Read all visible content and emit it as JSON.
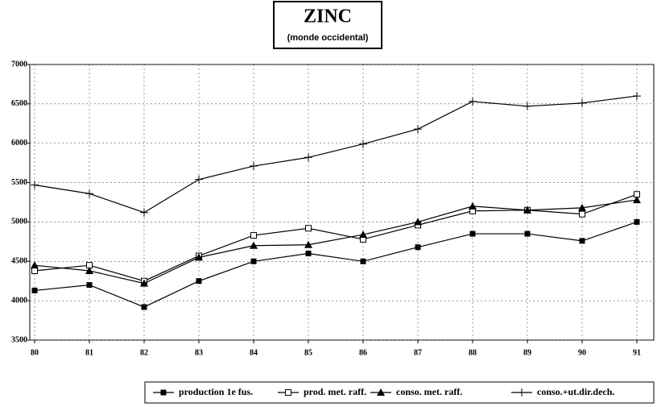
{
  "chart_data": {
    "type": "line",
    "title": "ZINC",
    "subtitle": "(monde occidental)",
    "categories": [
      "80",
      "81",
      "82",
      "83",
      "84",
      "85",
      "86",
      "87",
      "88",
      "89",
      "90",
      "91"
    ],
    "series": [
      {
        "name": "production 1e fus.",
        "color": "#000000",
        "marker": "square-filled",
        "values": [
          4130,
          4200,
          3920,
          4250,
          4500,
          4600,
          4500,
          4680,
          4850,
          4850,
          4760,
          5000
        ]
      },
      {
        "name": "prod. met. raff.",
        "color": "#000000",
        "marker": "square-open",
        "values": [
          4380,
          4450,
          4250,
          4570,
          4830,
          4920,
          4780,
          4960,
          5140,
          5150,
          5100,
          5350
        ]
      },
      {
        "name": "conso. met. raff.",
        "color": "#000000",
        "marker": "triangle",
        "values": [
          4450,
          4380,
          4220,
          4550,
          4700,
          4710,
          4840,
          5000,
          5200,
          5150,
          5180,
          5280
        ]
      },
      {
        "name": "conso.+ut.dir.dech.",
        "color": "#000000",
        "marker": "plus",
        "values": [
          5470,
          5360,
          5120,
          5540,
          5710,
          5820,
          5990,
          6180,
          6530,
          6470,
          6510,
          6600
        ]
      }
    ],
    "ylim": [
      3500,
      7000
    ],
    "yticks": [
      3500,
      4000,
      4500,
      5000,
      5500,
      6000,
      6500,
      7000
    ],
    "grid": true
  }
}
